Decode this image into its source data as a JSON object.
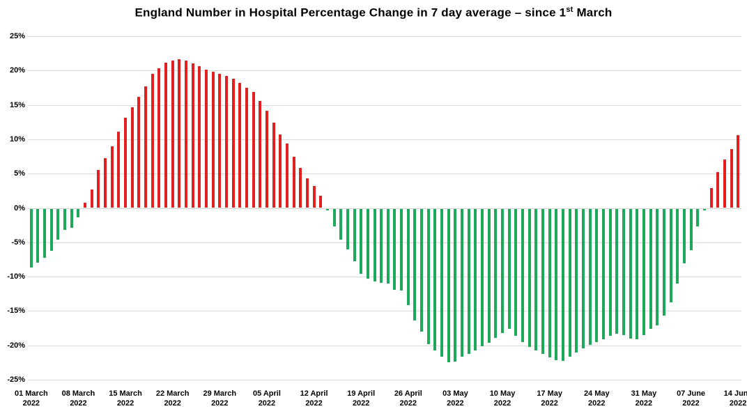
{
  "title": {
    "main": "England Number in Hospital Percentage Change in 7 day average – since 1",
    "superscript": "st",
    "suffix": " March"
  },
  "chart_data": {
    "type": "bar",
    "title": "England Number in Hospital Percentage Change in 7 day average – since 1st March",
    "xlabel": "",
    "ylabel": "",
    "ylim": [
      -25,
      25
    ],
    "grid": true,
    "legend": "none",
    "x_start": "01 March 2022",
    "x_end": "14 June 2022",
    "x_frequency": "daily",
    "positive_color": "#e22020",
    "negative_color": "#1ea85a",
    "gridline_color": "#d9d9d9",
    "y_tick_labels": [
      "25%",
      "20%",
      "15%",
      "10%",
      "5%",
      "0%",
      "-5%",
      "-10%",
      "-15%",
      "-20%",
      "-25%"
    ],
    "y_tick_values": [
      25,
      20,
      15,
      10,
      5,
      0,
      -5,
      -10,
      -15,
      -20,
      -25
    ],
    "x_tick_labels": [
      "01 March",
      "08 March",
      "15 March",
      "22 March",
      "29 March",
      "05 April",
      "12 April",
      "19 April",
      "26 April",
      "03 May",
      "10 May",
      "17 May",
      "24 May",
      "31 May",
      "07 June",
      "14 June"
    ],
    "x_tick_year": "2022",
    "x_tick_every_n_bars": 7,
    "values": [
      -8.6,
      -7.9,
      -7.2,
      -6.1,
      -4.5,
      -3.1,
      -2.8,
      -1.3,
      0.8,
      2.7,
      5.5,
      7.3,
      9.0,
      11.1,
      13.1,
      14.7,
      16.2,
      17.7,
      19.5,
      20.3,
      21.1,
      21.5,
      21.7,
      21.5,
      21.0,
      20.6,
      20.1,
      19.8,
      19.5,
      19.2,
      18.8,
      18.2,
      17.5,
      16.9,
      15.6,
      14.1,
      12.4,
      10.7,
      9.4,
      7.5,
      5.8,
      4.3,
      3.2,
      1.8,
      -0.3,
      -2.6,
      -4.5,
      -5.9,
      -7.7,
      -9.5,
      -10.2,
      -10.6,
      -10.8,
      -10.9,
      -11.8,
      -11.9,
      -14.0,
      -16.3,
      -17.9,
      -19.7,
      -20.6,
      -21.6,
      -22.4,
      -22.3,
      -21.6,
      -21.1,
      -20.6,
      -20.0,
      -19.5,
      -18.8,
      -18.1,
      -17.5,
      -18.5,
      -19.4,
      -20.1,
      -20.6,
      -21.1,
      -21.7,
      -22.1,
      -22.2,
      -21.6,
      -20.9,
      -20.3,
      -19.8,
      -19.4,
      -19.0,
      -18.5,
      -18.2,
      -18.4,
      -18.9,
      -19.0,
      -18.4,
      -17.5,
      -17.0,
      -15.6,
      -13.6,
      -10.9,
      -8.0,
      -6.0,
      -2.6,
      -0.3,
      2.9,
      5.2,
      7.0,
      8.6,
      10.6
    ]
  }
}
